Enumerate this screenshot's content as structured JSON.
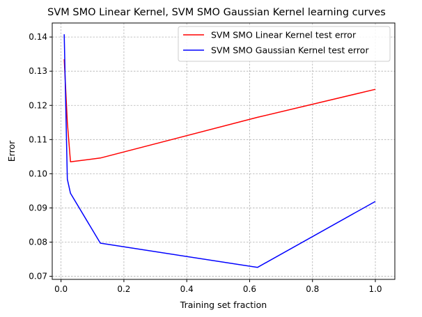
{
  "chart_data": {
    "type": "line",
    "title": "SVM SMO Linear Kernel, SVM SMO Gaussian Kernel learning curves",
    "xlabel": "Training set fraction",
    "ylabel": "Error",
    "xlim": [
      -0.028,
      1.062
    ],
    "ylim": [
      0.0691,
      0.1441
    ],
    "xticks": [
      0.0,
      0.2,
      0.4,
      0.6,
      0.8,
      1.0
    ],
    "xtick_labels": [
      "0.0",
      "0.2",
      "0.4",
      "0.6",
      "0.8",
      "1.0"
    ],
    "yticks": [
      0.07,
      0.08,
      0.09,
      0.1,
      0.11,
      0.12,
      0.13,
      0.14
    ],
    "ytick_labels": [
      "0.07",
      "0.08",
      "0.09",
      "0.10",
      "0.11",
      "0.12",
      "0.13",
      "0.14"
    ],
    "grid": true,
    "legend_position": "top-right",
    "series": [
      {
        "name": "SVM SMO Linear Kernel test error",
        "color": "#ff0000",
        "x": [
          0.01,
          0.02,
          0.03,
          0.125,
          0.625,
          1.0
        ],
        "y": [
          0.1335,
          0.115,
          0.1035,
          0.1046,
          0.1165,
          0.1247
        ]
      },
      {
        "name": "SVM SMO Gaussian Kernel test error",
        "color": "#0000ff",
        "x": [
          0.01,
          0.02,
          0.03,
          0.125,
          0.625,
          1.0
        ],
        "y": [
          0.1408,
          0.0984,
          0.0943,
          0.0797,
          0.0726,
          0.0919
        ]
      }
    ]
  }
}
